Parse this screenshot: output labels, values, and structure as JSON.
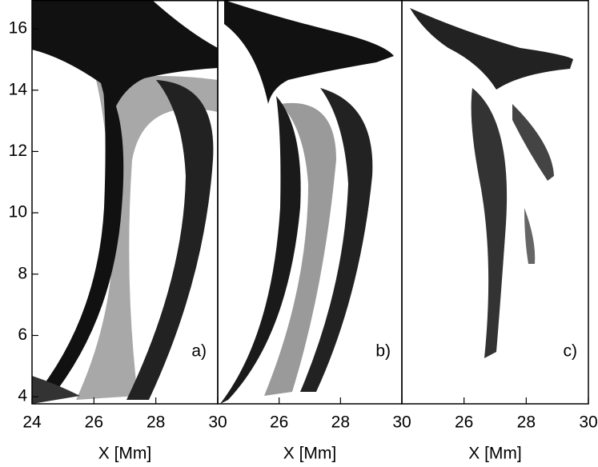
{
  "chart_data": [
    {
      "type": "image",
      "panel_label": "a)",
      "x_label": "X [Mm]",
      "xlim": [
        24,
        30
      ],
      "xticks": [
        24,
        26,
        28,
        30
      ],
      "ylim": [
        3.77,
        16.94
      ],
      "yticks": [
        4,
        6,
        8,
        10,
        12,
        14,
        16
      ]
    },
    {
      "type": "image",
      "panel_label": "b)",
      "x_label": "X [Mm]",
      "xlim": [
        24,
        30
      ],
      "xticks": [
        26,
        28,
        30
      ],
      "ylim": [
        3.77,
        16.94
      ]
    },
    {
      "type": "image",
      "panel_label": "c)",
      "x_label": "X [Mm]",
      "xlim": [
        24,
        30
      ],
      "xticks": [
        26,
        28,
        30
      ],
      "ylim": [
        3.77,
        16.94
      ]
    }
  ]
}
